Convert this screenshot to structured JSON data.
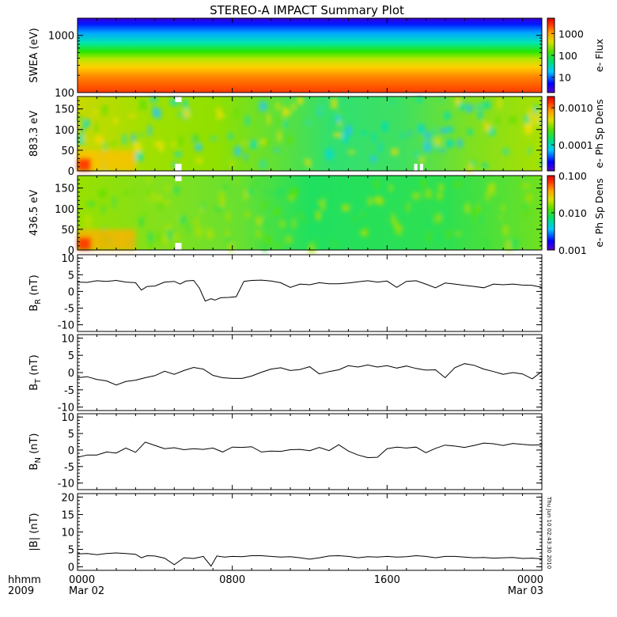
{
  "chart_data": {
    "title": "STEREO-A IMPACT Summary Plot",
    "x_ticks": [
      {
        "line1": "0000",
        "line2": "Mar 02"
      },
      {
        "line1": "0800",
        "line2": ""
      },
      {
        "line1": "1600",
        "line2": ""
      },
      {
        "line1": "0000",
        "line2": "Mar 03"
      }
    ],
    "x_corner": {
      "line1": "hhmm",
      "line2": "2009"
    },
    "xlim_hours": [
      0,
      24
    ],
    "stamp": "Thu Jun 10 02:43:30 2010",
    "spectrograms": [
      {
        "type": "heatmap",
        "ylabel": "SWEA (eV)",
        "scale": "log",
        "ylim": [
          100,
          2000
        ],
        "yticks": [
          "1000",
          "100"
        ],
        "colorbar_label": "e- Flux",
        "colorbar_ticks": [
          "1000",
          "100",
          "10"
        ],
        "colorbar_range": [
          2,
          5000
        ]
      },
      {
        "type": "heatmap",
        "ylabel": "883.3 eV",
        "scale": "linear",
        "ylim": [
          0,
          180
        ],
        "yticks": [
          "150",
          "100",
          "50",
          "0"
        ],
        "colorbar_label": "e- Ph Sp Dens",
        "colorbar_ticks": [
          "0.0010",
          "0.0001"
        ],
        "colorbar_range": [
          2e-05,
          0.002
        ]
      },
      {
        "type": "heatmap",
        "ylabel": "436.5 eV",
        "scale": "linear",
        "ylim": [
          0,
          180
        ],
        "yticks": [
          "150",
          "100",
          "50",
          "0"
        ],
        "colorbar_label": "e- Ph Sp Dens",
        "colorbar_ticks": [
          "0.100",
          "0.010",
          "0.001"
        ],
        "colorbar_range": [
          0.001,
          0.1
        ]
      }
    ],
    "line_panels": [
      {
        "type": "line",
        "ylabel_main": "B",
        "ylabel_sub": "R",
        "ylabel_unit": " (nT)",
        "ylim": [
          -12,
          11
        ],
        "yticks": [
          "10",
          "5",
          "0",
          "-5",
          "-10"
        ],
        "x": [
          0,
          0.5,
          1,
          1.5,
          2,
          2.5,
          3,
          3.3,
          3.6,
          4,
          4.5,
          5,
          5.3,
          5.6,
          6,
          6.3,
          6.6,
          6.9,
          7.1,
          7.4,
          7.8,
          8.2,
          8.6,
          9,
          9.5,
          10,
          10.5,
          11,
          11.5,
          12,
          12.5,
          13,
          13.5,
          14,
          14.5,
          15,
          15.5,
          16,
          16.5,
          17,
          17.5,
          18,
          18.5,
          19,
          19.5,
          20,
          20.5,
          21,
          21.5,
          22,
          22.5,
          23,
          23.5,
          24
        ],
        "y": [
          2.8,
          2.7,
          3.2,
          3.0,
          3.3,
          2.8,
          2.6,
          0.4,
          1.5,
          1.6,
          2.8,
          3.0,
          2.2,
          3.1,
          3.3,
          1.0,
          -2.9,
          -2.2,
          -2.6,
          -1.9,
          -1.8,
          -1.6,
          3.0,
          3.3,
          3.4,
          3.1,
          2.6,
          1.2,
          2.2,
          2.0,
          2.6,
          2.3,
          2.3,
          2.5,
          2.9,
          3.2,
          2.8,
          3.1,
          1.2,
          3.0,
          3.2,
          2.2,
          1.1,
          2.5,
          2.2,
          1.8,
          1.5,
          1.1,
          2.2,
          2.0,
          2.2,
          1.9,
          1.8,
          1.2
        ]
      },
      {
        "type": "line",
        "ylabel_main": "B",
        "ylabel_sub": "T",
        "ylabel_unit": " (nT)",
        "ylim": [
          -11,
          11
        ],
        "yticks": [
          "10",
          "5",
          "0",
          "-5",
          "-10"
        ],
        "x": [
          0,
          0.5,
          1,
          1.5,
          2,
          2.5,
          3,
          3.5,
          4,
          4.5,
          5,
          5.5,
          6,
          6.5,
          7,
          7.5,
          8,
          8.5,
          9,
          9.5,
          10,
          10.5,
          11,
          11.5,
          12,
          12.5,
          13,
          13.5,
          14,
          14.5,
          15,
          15.5,
          16,
          16.5,
          17,
          17.5,
          18,
          18.5,
          19,
          19.5,
          20,
          20.5,
          21,
          21.5,
          22,
          22.5,
          23,
          23.5,
          24
        ],
        "y": [
          -1.5,
          -1.2,
          -2.0,
          -2.4,
          -3.6,
          -2.6,
          -2.2,
          -1.5,
          -0.9,
          0.4,
          -0.5,
          0.6,
          1.5,
          1.0,
          -0.8,
          -1.5,
          -1.7,
          -1.7,
          -1.0,
          0.1,
          1.0,
          1.4,
          0.6,
          0.9,
          1.7,
          -0.4,
          0.3,
          0.8,
          2.0,
          1.6,
          2.2,
          1.6,
          2.0,
          1.3,
          1.9,
          1.2,
          0.7,
          0.8,
          -1.5,
          1.4,
          2.6,
          2.1,
          1.0,
          0.3,
          -0.5,
          0.0,
          -0.4,
          -1.8,
          0.3
        ]
      },
      {
        "type": "line",
        "ylabel_main": "B",
        "ylabel_sub": "N",
        "ylabel_unit": " (nT)",
        "ylim": [
          -12,
          11
        ],
        "yticks": [
          "10",
          "5",
          "0",
          "-5",
          "-10"
        ],
        "x": [
          0,
          0.5,
          1,
          1.5,
          2,
          2.5,
          3,
          3.5,
          4,
          4.5,
          5,
          5.5,
          6,
          6.5,
          7,
          7.5,
          8,
          8.5,
          9,
          9.5,
          10,
          10.5,
          11,
          11.5,
          12,
          12.5,
          13,
          13.5,
          14,
          14.5,
          15,
          15.5,
          16,
          16.5,
          17,
          17.5,
          18,
          18.5,
          19,
          19.5,
          20,
          20.5,
          21,
          21.5,
          22,
          22.5,
          23,
          23.5,
          24
        ],
        "y": [
          -2.2,
          -1.5,
          -1.5,
          -0.6,
          -0.9,
          0.6,
          -0.7,
          2.4,
          1.4,
          0.4,
          0.7,
          0.1,
          0.4,
          0.2,
          0.6,
          -0.6,
          0.9,
          0.8,
          1.0,
          -0.6,
          -0.3,
          -0.4,
          0.1,
          0.2,
          -0.2,
          0.8,
          -0.2,
          1.6,
          -0.3,
          -1.5,
          -2.3,
          -2.2,
          0.4,
          0.9,
          0.6,
          0.9,
          -0.8,
          0.5,
          1.5,
          1.2,
          0.8,
          1.4,
          2.1,
          1.9,
          1.4,
          2.0,
          1.7,
          1.5,
          1.6
        ]
      },
      {
        "type": "line",
        "ylabel_main": "|B|",
        "ylabel_sub": "",
        "ylabel_unit": " (nT)",
        "ylim": [
          -1,
          21
        ],
        "yticks": [
          "20",
          "15",
          "10",
          "5",
          "0"
        ],
        "x": [
          0,
          0.5,
          1,
          1.5,
          2,
          2.5,
          3,
          3.3,
          3.6,
          4,
          4.5,
          5,
          5.5,
          6,
          6.5,
          6.9,
          7.2,
          7.6,
          8,
          8.5,
          9,
          9.5,
          10,
          10.5,
          11,
          11.5,
          12,
          12.5,
          13,
          13.5,
          14,
          14.5,
          15,
          15.5,
          16,
          16.5,
          17,
          17.5,
          18,
          18.5,
          19,
          19.5,
          20,
          20.5,
          21,
          21.5,
          22,
          22.5,
          23,
          23.5,
          24
        ],
        "y": [
          3.7,
          3.8,
          3.5,
          3.8,
          4.0,
          3.8,
          3.6,
          2.6,
          3.2,
          3.1,
          2.5,
          0.6,
          2.6,
          2.4,
          3.0,
          0.2,
          3.1,
          2.8,
          3.0,
          2.9,
          3.2,
          3.2,
          3.0,
          2.8,
          2.9,
          2.6,
          2.2,
          2.6,
          3.1,
          3.2,
          3.0,
          2.6,
          2.9,
          2.8,
          3.0,
          2.8,
          2.9,
          3.2,
          3.0,
          2.6,
          3.0,
          3.0,
          2.8,
          2.6,
          2.7,
          2.5,
          2.6,
          2.7,
          2.4,
          2.5,
          2.3
        ]
      }
    ]
  }
}
